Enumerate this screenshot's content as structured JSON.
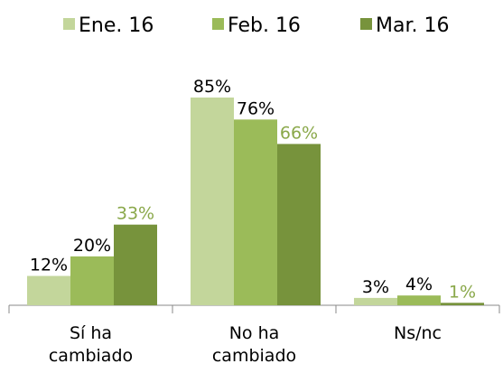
{
  "chart_data": {
    "type": "bar",
    "categories": [
      "Sí ha\ncambiado",
      "No ha\ncambiado",
      "Ns/nc"
    ],
    "series": [
      {
        "name": "Ene. 16",
        "color": "#c3d69b",
        "label_color": "#000000",
        "values": [
          12,
          85,
          3
        ],
        "value_labels": [
          "12%",
          "85%",
          "3%"
        ]
      },
      {
        "name": "Feb. 16",
        "color": "#9bbb59",
        "label_color": "#000000",
        "values": [
          20,
          76,
          4
        ],
        "value_labels": [
          "20%",
          "76%",
          "4%"
        ]
      },
      {
        "name": "Mar. 16",
        "color": "#77933c",
        "label_color": "#8aa84a",
        "values": [
          33,
          66,
          1
        ],
        "value_labels": [
          "33%",
          "66%",
          "1%"
        ]
      }
    ],
    "legend": "top"
  }
}
